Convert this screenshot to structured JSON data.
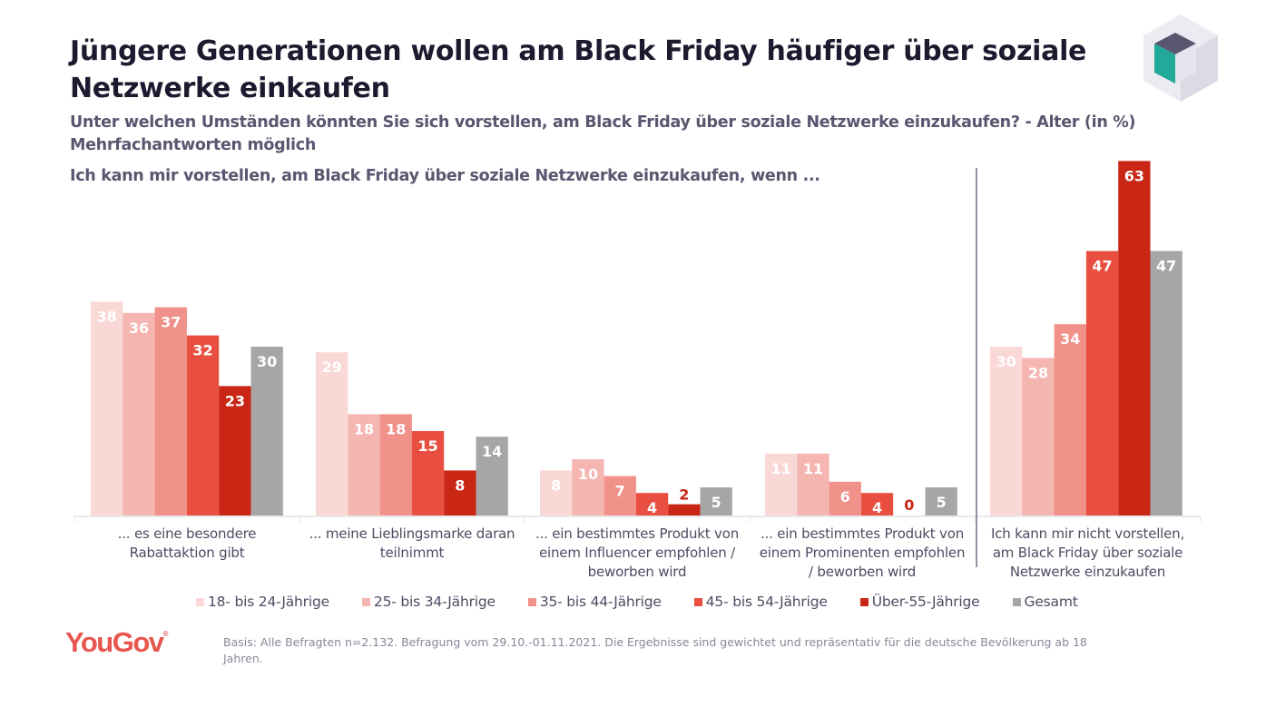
{
  "header": {
    "title": "Jüngere Generationen wollen am Black Friday häufiger über soziale Netzwerke einkaufen",
    "subtitle_line1": "Unter welchen Umständen könnten Sie sich vorstellen, am Black Friday über soziale Netzwerke einzukaufen? - Alter (in %)",
    "subtitle_line2": "Mehrfachantworten möglich",
    "intro": "Ich kann mir vorstellen, am Black Friday über soziale Netzwerke einzukaufen, wenn ..."
  },
  "chart_data": {
    "type": "bar",
    "title": "Jüngere Generationen wollen am Black Friday häufiger über soziale Netzwerke einkaufen",
    "xlabel": "",
    "ylabel": "in %",
    "ylim": [
      0,
      63
    ],
    "grid": false,
    "legend_position": "bottom",
    "categories": [
      "... es eine besondere Rabattaktion gibt",
      "... meine Lieblingsmarke daran teilnimmt",
      "... ein bestimmtes Produkt von einem Influencer empfohlen / beworben wird",
      "... ein bestimmtes Produkt von einem Prominenten empfohlen / beworben wird",
      "Ich kann mir nicht vorstellen, am Black Friday über soziale Netzwerke einzukaufen"
    ],
    "series": [
      {
        "name": "18- bis 24-Jährige",
        "color": "#f9d8d6",
        "values": [
          38,
          29,
          8,
          11,
          30
        ]
      },
      {
        "name": "25- bis 34-Jährige",
        "color": "#f5b5b0",
        "values": [
          36,
          18,
          10,
          11,
          28
        ]
      },
      {
        "name": "35- bis 44-Jährige",
        "color": "#f0918a",
        "values": [
          37,
          18,
          7,
          6,
          34
        ]
      },
      {
        "name": "45- bis 54-Jährige",
        "color": "#e84f40",
        "values": [
          32,
          15,
          4,
          4,
          47
        ]
      },
      {
        "name": "Über-55-Jährige",
        "color": "#c92616",
        "values": [
          23,
          8,
          2,
          0,
          63
        ]
      },
      {
        "name": "Gesamt",
        "color": "#a6a6a6",
        "values": [
          30,
          14,
          5,
          5,
          47
        ]
      }
    ]
  },
  "category_labels": [
    [
      "... es eine besondere",
      "Rabattaktion gibt"
    ],
    [
      "... meine Lieblingsmarke daran",
      "teilnimmt"
    ],
    [
      "... ein bestimmtes Produkt von",
      "einem Influencer empfohlen /",
      "beworben wird"
    ],
    [
      "... ein bestimmtes Produkt von",
      "einem Prominenten empfohlen",
      "/ beworben wird"
    ],
    [
      "Ich kann mir nicht vorstellen,",
      "am Black Friday über soziale",
      "Netzwerke einzukaufen"
    ]
  ],
  "footer": {
    "logo": "YouGov",
    "logo_mark": "®",
    "note": "Basis: Alle Befragten n=2.132. Befragung vom 29.10.-01.11.2021. Die Ergebnisse sind gewichtet und repräsentativ für die deutsche Bevölkerung ab 18 Jahren."
  },
  "colors": {
    "title": "#1c1a2e",
    "subtitle": "#5b5670",
    "brand": "#e8574f"
  }
}
